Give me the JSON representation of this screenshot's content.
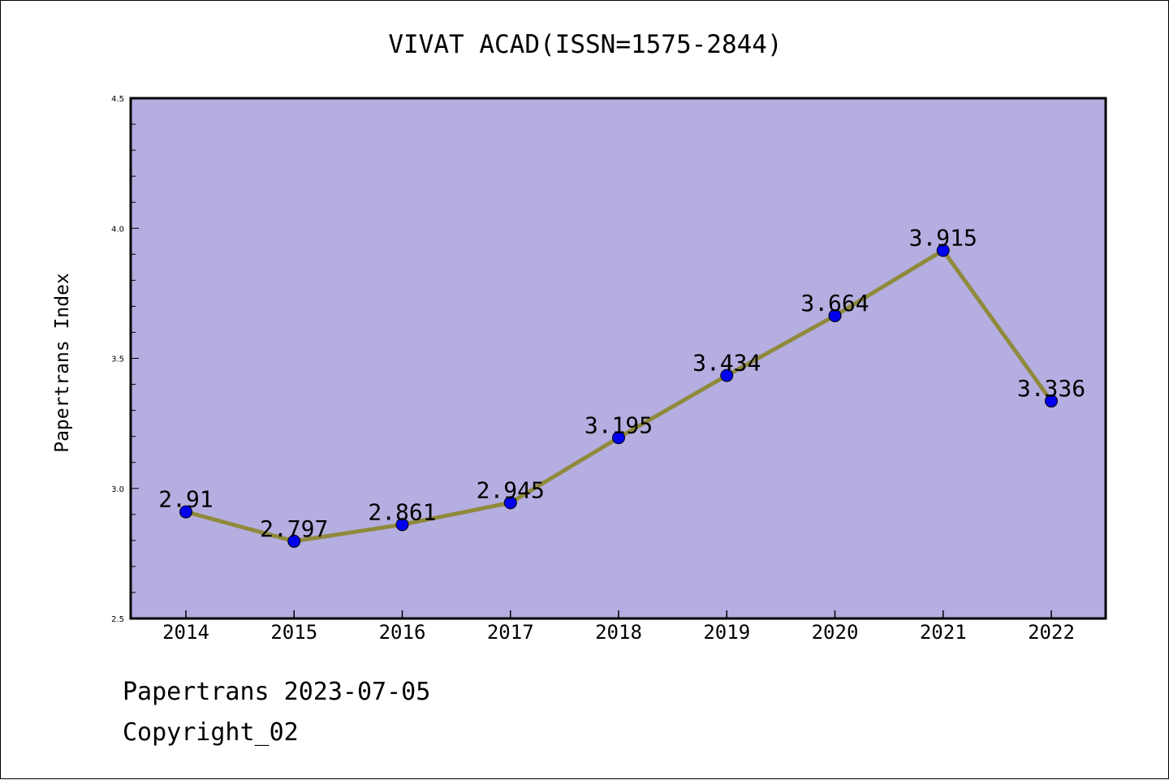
{
  "chart_data": {
    "type": "line",
    "title": "VIVAT ACAD(ISSN=1575-2844)",
    "xlabel": "",
    "ylabel": "Papertrans Index",
    "categories": [
      "2014",
      "2015",
      "2016",
      "2017",
      "2018",
      "2019",
      "2020",
      "2021",
      "2022"
    ],
    "series": [
      {
        "values": [
          2.91,
          2.797,
          2.861,
          2.945,
          3.195,
          3.434,
          3.664,
          3.915,
          3.336
        ],
        "data_labels": [
          "2.91",
          "2.797",
          "2.861",
          "2.945",
          "3.195",
          "3.434",
          "3.664",
          "3.915",
          "3.336"
        ]
      }
    ],
    "ylim": [
      2.5,
      4.5
    ],
    "yticks": [
      2.5,
      3.0,
      3.5,
      4.0,
      4.5
    ],
    "ytick_labels": [
      "2.5",
      "3.0",
      "3.5",
      "4.0",
      "4.5"
    ],
    "grid": false,
    "legend": "none",
    "colors": {
      "plot_background": "#b5aee1",
      "line": "#8f8a3c",
      "marker": "#0000ee",
      "frame": "#000000"
    }
  },
  "footer": {
    "date_line": "Papertrans 2023-07-05",
    "copyright_line": "Copyright_02"
  }
}
